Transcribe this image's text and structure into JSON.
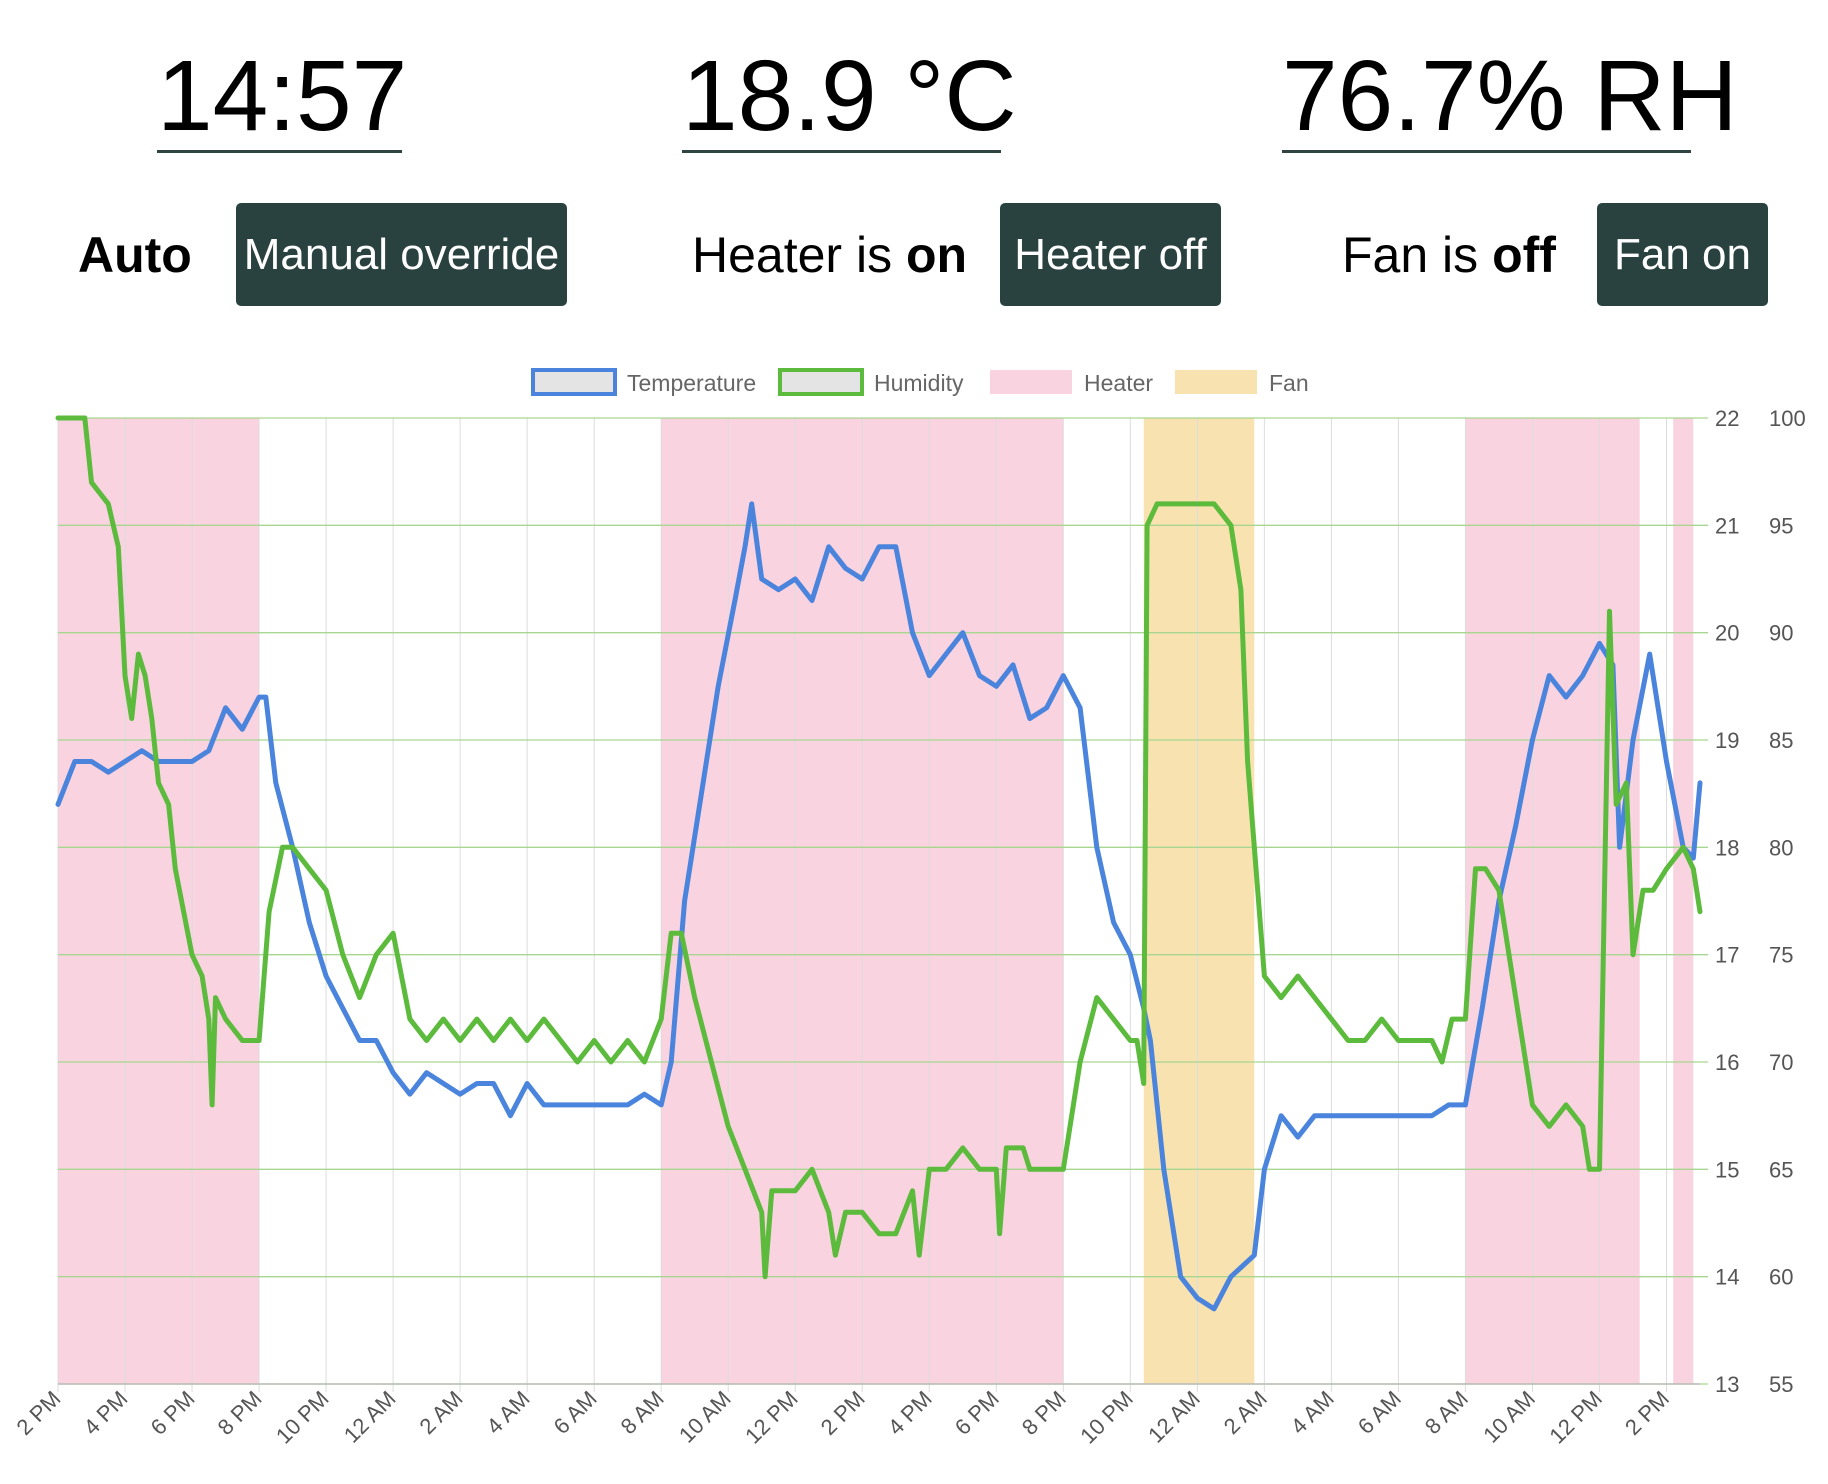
{
  "readouts": {
    "time": "14:57",
    "temperature": "18.9 °C",
    "humidity": "76.7% RH"
  },
  "controls": {
    "mode_label": "Auto",
    "mode_button": "Manual override",
    "heater_prefix": "Heater is ",
    "heater_state": "on",
    "heater_button": "Heater off",
    "fan_prefix": "Fan is ",
    "fan_state": "off",
    "fan_button": "Fan on"
  },
  "colors": {
    "temperature": "#4a84dc",
    "humidity": "#5cbb3c",
    "heater": "#f9d3df",
    "fan": "#f8e3b0",
    "button_bg": "#2a423f",
    "underline": "#2d4440"
  },
  "chart_data": {
    "type": "line",
    "legend": [
      "Temperature",
      "Humidity",
      "Heater",
      "Fan"
    ],
    "legend_position": "top",
    "grid": true,
    "x_unit": "hours from 2 PM (day 1)",
    "x_range": [
      0,
      49
    ],
    "x_ticks": [
      "2 PM",
      "4 PM",
      "6 PM",
      "8 PM",
      "10 PM",
      "12 AM",
      "2 AM",
      "4 AM",
      "6 AM",
      "8 AM",
      "10 AM",
      "12 PM",
      "2 PM",
      "4 PM",
      "6 PM",
      "8 PM",
      "10 PM",
      "12 AM",
      "2 AM",
      "4 AM",
      "6 AM",
      "8 AM",
      "10 AM",
      "12 PM",
      "2 PM"
    ],
    "y_left": {
      "min": 13,
      "max": 22,
      "ticks": [
        "13",
        "14",
        "15",
        "16",
        "17",
        "18",
        "19",
        "20",
        "21",
        "22"
      ]
    },
    "y_right": {
      "min": 55,
      "max": 100,
      "ticks": [
        "55",
        "60",
        "65",
        "70",
        "75",
        "80",
        "85",
        "90",
        "95",
        "100"
      ]
    },
    "heater_periods": [
      [
        0,
        6
      ],
      [
        18,
        30
      ],
      [
        42,
        47.2
      ],
      [
        48.2,
        48.8
      ]
    ],
    "fan_periods": [
      [
        32.4,
        35.7
      ]
    ],
    "series": [
      {
        "name": "Temperature",
        "axis": "left",
        "points": [
          [
            0,
            18.4
          ],
          [
            0.5,
            18.8
          ],
          [
            1,
            18.8
          ],
          [
            1.5,
            18.7
          ],
          [
            2,
            18.8
          ],
          [
            2.5,
            18.9
          ],
          [
            3,
            18.8
          ],
          [
            3.5,
            18.8
          ],
          [
            4,
            18.8
          ],
          [
            4.5,
            18.9
          ],
          [
            5,
            19.3
          ],
          [
            5.5,
            19.1
          ],
          [
            6,
            19.4
          ],
          [
            6.2,
            19.4
          ],
          [
            6.5,
            18.6
          ],
          [
            7,
            18.0
          ],
          [
            7.5,
            17.3
          ],
          [
            8,
            16.8
          ],
          [
            8.5,
            16.5
          ],
          [
            9,
            16.2
          ],
          [
            9.5,
            16.2
          ],
          [
            10,
            15.9
          ],
          [
            10.5,
            15.7
          ],
          [
            11,
            15.9
          ],
          [
            11.5,
            15.8
          ],
          [
            12,
            15.7
          ],
          [
            12.5,
            15.8
          ],
          [
            13,
            15.8
          ],
          [
            13.5,
            15.5
          ],
          [
            14,
            15.8
          ],
          [
            14.5,
            15.6
          ],
          [
            15,
            15.6
          ],
          [
            15.5,
            15.6
          ],
          [
            16,
            15.6
          ],
          [
            16.5,
            15.6
          ],
          [
            17,
            15.6
          ],
          [
            17.5,
            15.7
          ],
          [
            18,
            15.6
          ],
          [
            18.3,
            16.0
          ],
          [
            18.7,
            17.5
          ],
          [
            19.2,
            18.5
          ],
          [
            19.7,
            19.5
          ],
          [
            20.2,
            20.3
          ],
          [
            20.5,
            20.8
          ],
          [
            20.7,
            21.2
          ],
          [
            21,
            20.5
          ],
          [
            21.5,
            20.4
          ],
          [
            22,
            20.5
          ],
          [
            22.5,
            20.3
          ],
          [
            23,
            20.8
          ],
          [
            23.5,
            20.6
          ],
          [
            24,
            20.5
          ],
          [
            24.5,
            20.8
          ],
          [
            25,
            20.8
          ],
          [
            25.5,
            20.0
          ],
          [
            26,
            19.6
          ],
          [
            26.5,
            19.8
          ],
          [
            27,
            20.0
          ],
          [
            27.5,
            19.6
          ],
          [
            28,
            19.5
          ],
          [
            28.5,
            19.7
          ],
          [
            29,
            19.2
          ],
          [
            29.5,
            19.3
          ],
          [
            30,
            19.6
          ],
          [
            30.5,
            19.3
          ],
          [
            31,
            18.0
          ],
          [
            31.5,
            17.3
          ],
          [
            32,
            17.0
          ],
          [
            32.4,
            16.5
          ],
          [
            32.6,
            16.2
          ],
          [
            33,
            15.0
          ],
          [
            33.5,
            14.0
          ],
          [
            34,
            13.8
          ],
          [
            34.5,
            13.7
          ],
          [
            35,
            14.0
          ],
          [
            35.7,
            14.2
          ],
          [
            36,
            15.0
          ],
          [
            36.5,
            15.5
          ],
          [
            37,
            15.3
          ],
          [
            37.5,
            15.5
          ],
          [
            38,
            15.5
          ],
          [
            38.5,
            15.5
          ],
          [
            39,
            15.5
          ],
          [
            39.5,
            15.5
          ],
          [
            40,
            15.5
          ],
          [
            40.5,
            15.5
          ],
          [
            41,
            15.5
          ],
          [
            41.5,
            15.6
          ],
          [
            42,
            15.6
          ],
          [
            42.5,
            16.5
          ],
          [
            43,
            17.5
          ],
          [
            43.5,
            18.2
          ],
          [
            44,
            19.0
          ],
          [
            44.5,
            19.6
          ],
          [
            45,
            19.4
          ],
          [
            45.5,
            19.6
          ],
          [
            46,
            19.9
          ],
          [
            46.4,
            19.7
          ],
          [
            46.6,
            18.0
          ],
          [
            47,
            19.0
          ],
          [
            47.5,
            19.8
          ],
          [
            48,
            18.8
          ],
          [
            48.5,
            18.0
          ],
          [
            48.8,
            17.9
          ],
          [
            49,
            18.6
          ]
        ]
      },
      {
        "name": "Humidity",
        "axis": "right",
        "points": [
          [
            0,
            100
          ],
          [
            0.8,
            100
          ],
          [
            1,
            97
          ],
          [
            1.5,
            96
          ],
          [
            1.8,
            94
          ],
          [
            2,
            88
          ],
          [
            2.2,
            86
          ],
          [
            2.4,
            89
          ],
          [
            2.6,
            88
          ],
          [
            2.8,
            86
          ],
          [
            3,
            83
          ],
          [
            3.3,
            82
          ],
          [
            3.5,
            79
          ],
          [
            4,
            75
          ],
          [
            4.3,
            74
          ],
          [
            4.5,
            72
          ],
          [
            4.6,
            68
          ],
          [
            4.7,
            73
          ],
          [
            5,
            72
          ],
          [
            5.5,
            71
          ],
          [
            6,
            71
          ],
          [
            6.3,
            77
          ],
          [
            6.7,
            80
          ],
          [
            7,
            80
          ],
          [
            7.5,
            79
          ],
          [
            8,
            78
          ],
          [
            8.5,
            75
          ],
          [
            9,
            73
          ],
          [
            9.5,
            75
          ],
          [
            10,
            76
          ],
          [
            10.5,
            72
          ],
          [
            11,
            71
          ],
          [
            11.5,
            72
          ],
          [
            12,
            71
          ],
          [
            12.5,
            72
          ],
          [
            13,
            71
          ],
          [
            13.5,
            72
          ],
          [
            14,
            71
          ],
          [
            14.5,
            72
          ],
          [
            15,
            71
          ],
          [
            15.5,
            70
          ],
          [
            16,
            71
          ],
          [
            16.5,
            70
          ],
          [
            17,
            71
          ],
          [
            17.5,
            70
          ],
          [
            18,
            72
          ],
          [
            18.3,
            76
          ],
          [
            18.6,
            76
          ],
          [
            19,
            73
          ],
          [
            19.5,
            70
          ],
          [
            20,
            67
          ],
          [
            20.5,
            65
          ],
          [
            21,
            63
          ],
          [
            21.1,
            60
          ],
          [
            21.3,
            64
          ],
          [
            22,
            64
          ],
          [
            22.5,
            65
          ],
          [
            23,
            63
          ],
          [
            23.2,
            61
          ],
          [
            23.5,
            63
          ],
          [
            24,
            63
          ],
          [
            24.5,
            62
          ],
          [
            25,
            62
          ],
          [
            25.5,
            64
          ],
          [
            25.7,
            61
          ],
          [
            26,
            65
          ],
          [
            26.5,
            65
          ],
          [
            27,
            66
          ],
          [
            27.5,
            65
          ],
          [
            28,
            65
          ],
          [
            28.1,
            62
          ],
          [
            28.3,
            66
          ],
          [
            28.8,
            66
          ],
          [
            29,
            65
          ],
          [
            29.5,
            65
          ],
          [
            30,
            65
          ],
          [
            30.5,
            70
          ],
          [
            31,
            73
          ],
          [
            31.5,
            72
          ],
          [
            32,
            71
          ],
          [
            32.2,
            71
          ],
          [
            32.4,
            69
          ],
          [
            32.5,
            95
          ],
          [
            32.8,
            96
          ],
          [
            33,
            96
          ],
          [
            33.5,
            96
          ],
          [
            34,
            96
          ],
          [
            34.5,
            96
          ],
          [
            35,
            95
          ],
          [
            35.3,
            92
          ],
          [
            35.5,
            84
          ],
          [
            35.8,
            78
          ],
          [
            36,
            74
          ],
          [
            36.5,
            73
          ],
          [
            37,
            74
          ],
          [
            37.5,
            73
          ],
          [
            38,
            72
          ],
          [
            38.5,
            71
          ],
          [
            39,
            71
          ],
          [
            39.5,
            72
          ],
          [
            40,
            71
          ],
          [
            40.5,
            71
          ],
          [
            41,
            71
          ],
          [
            41.3,
            70
          ],
          [
            41.6,
            72
          ],
          [
            42,
            72
          ],
          [
            42.3,
            79
          ],
          [
            42.6,
            79
          ],
          [
            43,
            78
          ],
          [
            43.5,
            73
          ],
          [
            44,
            68
          ],
          [
            44.5,
            67
          ],
          [
            45,
            68
          ],
          [
            45.5,
            67
          ],
          [
            45.7,
            65
          ],
          [
            46,
            65
          ],
          [
            46.3,
            91
          ],
          [
            46.5,
            82
          ],
          [
            46.8,
            83
          ],
          [
            47,
            75
          ],
          [
            47.3,
            78
          ],
          [
            47.6,
            78
          ],
          [
            48,
            79
          ],
          [
            48.5,
            80
          ],
          [
            48.8,
            79
          ],
          [
            49,
            77
          ]
        ]
      }
    ]
  }
}
